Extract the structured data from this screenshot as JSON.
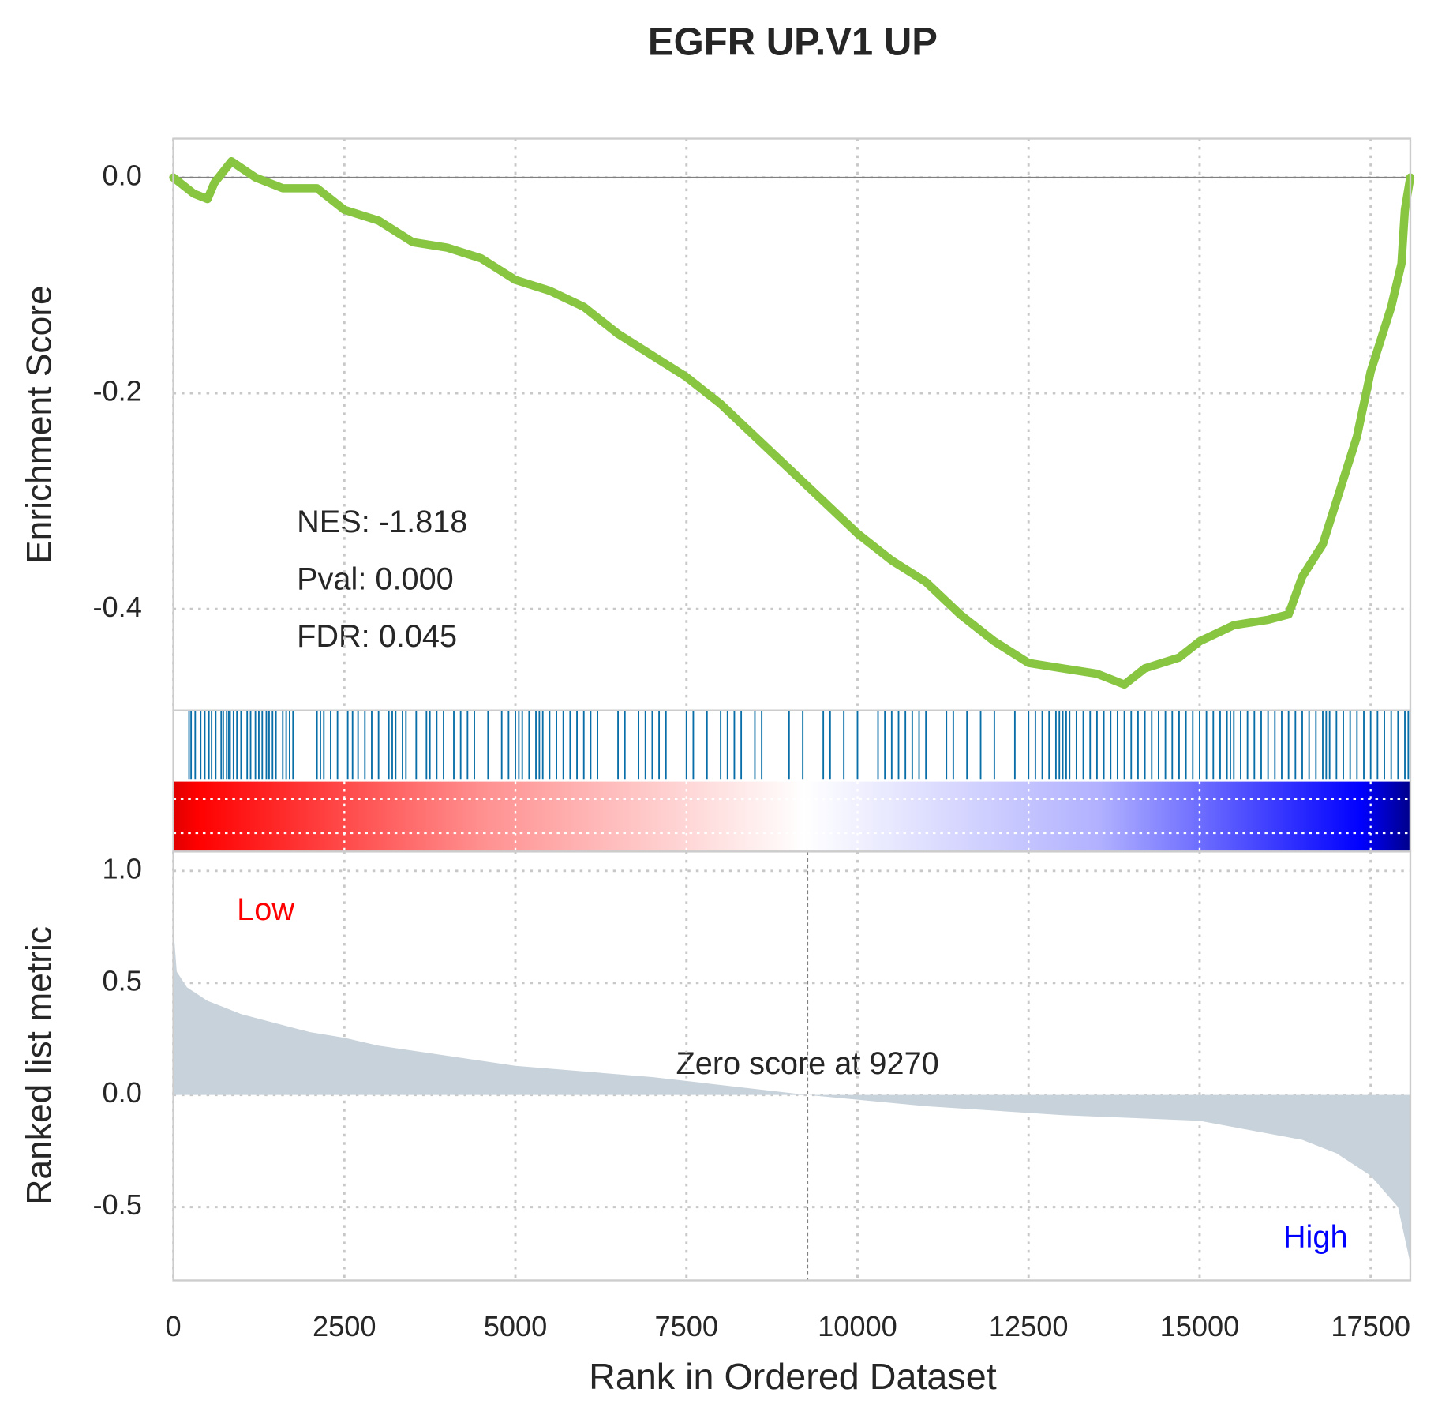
{
  "chart_data": [
    {
      "type": "line",
      "title": "EGFR UP.V1 UP",
      "ylabel": "Enrichment Score",
      "color": "#88c540",
      "x": [
        0,
        300,
        500,
        600,
        850,
        1200,
        1600,
        2100,
        2500,
        3000,
        3500,
        4000,
        4500,
        5000,
        5500,
        6000,
        6500,
        7000,
        7500,
        8000,
        8500,
        9000,
        9500,
        10000,
        10500,
        11000,
        11500,
        12000,
        12500,
        13000,
        13500,
        13900,
        14200,
        14700,
        15000,
        15500,
        16000,
        16300,
        16500,
        16800,
        17000,
        17300,
        17500,
        17800,
        17950,
        18000,
        18079
      ],
      "values": [
        0,
        -0.015,
        -0.02,
        -0.005,
        0.015,
        0,
        -0.01,
        -0.01,
        -0.03,
        -0.04,
        -0.06,
        -0.065,
        -0.075,
        -0.095,
        -0.105,
        -0.12,
        -0.145,
        -0.165,
        -0.185,
        -0.21,
        -0.24,
        -0.27,
        -0.3,
        -0.33,
        -0.355,
        -0.375,
        -0.405,
        -0.43,
        -0.45,
        -0.455,
        -0.46,
        -0.47,
        -0.455,
        -0.445,
        -0.43,
        -0.415,
        -0.41,
        -0.405,
        -0.37,
        -0.34,
        -0.3,
        -0.24,
        -0.18,
        -0.12,
        -0.08,
        -0.03,
        0
      ],
      "xlim": [
        0,
        18080
      ],
      "ylim": [
        -0.494,
        0.036
      ],
      "yticks": [
        {
          "value": 0,
          "label": "0.0"
        },
        -0.2,
        -0.4
      ],
      "annotations": [
        "NES: -1.818",
        "Pval: 0.000",
        "FDR: 0.045"
      ],
      "grid": true
    },
    {
      "type": "rug",
      "color": "#0a6fa8",
      "xlim": [
        0,
        18080
      ],
      "x": [
        230,
        260,
        320,
        400,
        460,
        520,
        560,
        620,
        700,
        730,
        780,
        810,
        830,
        880,
        930,
        990,
        1080,
        1130,
        1200,
        1250,
        1300,
        1360,
        1400,
        1450,
        1500,
        1600,
        1650,
        1700,
        1750,
        2100,
        2150,
        2200,
        2300,
        2400,
        2550,
        2620,
        2700,
        2800,
        2900,
        3000,
        3150,
        3200,
        3250,
        3350,
        3400,
        3550,
        3700,
        3750,
        3850,
        3950,
        4100,
        4200,
        4300,
        4400,
        4600,
        4800,
        4900,
        5000,
        5050,
        5100,
        5200,
        5300,
        5350,
        5400,
        5500,
        5600,
        5700,
        5800,
        5900,
        6000,
        6100,
        6200,
        6500,
        6600,
        6800,
        6900,
        7000,
        7100,
        7200,
        7500,
        7600,
        7800,
        8000,
        8100,
        8200,
        8300,
        8500,
        8600,
        9000,
        9200,
        9500,
        9600,
        9800,
        10000,
        10300,
        10400,
        10500,
        10600,
        10700,
        10800,
        10900,
        11000,
        11300,
        11400,
        11600,
        11800,
        12000,
        12300,
        12500,
        12600,
        12700,
        12800,
        12900,
        12950,
        13000,
        13050,
        13100,
        13200,
        13300,
        13400,
        13500,
        13600,
        13700,
        13800,
        13900,
        14000,
        14100,
        14200,
        14300,
        14400,
        14500,
        14600,
        14700,
        14800,
        14900,
        15000,
        15100,
        15200,
        15300,
        15400,
        15450,
        15500,
        15600,
        15700,
        15800,
        15900,
        16000,
        16100,
        16200,
        16300,
        16400,
        16500,
        16600,
        16700,
        16800,
        16850,
        16900,
        17000,
        17100,
        17200,
        17300,
        17400,
        17500,
        17600,
        17700,
        17800,
        17900,
        18000,
        18050
      ]
    },
    {
      "type": "area",
      "ylabel": "Ranked list metric",
      "xlabel": "Rank in Ordered Dataset",
      "color": "#c8d2da",
      "x": [
        0,
        50,
        200,
        500,
        1000,
        2000,
        2500,
        3000,
        5000,
        7000,
        9270,
        11000,
        13000,
        15000,
        16500,
        17000,
        17500,
        17900,
        18079
      ],
      "values": [
        0.75,
        0.55,
        0.48,
        0.42,
        0.36,
        0.28,
        0.255,
        0.22,
        0.13,
        0.08,
        0,
        -0.05,
        -0.09,
        -0.115,
        -0.2,
        -0.26,
        -0.36,
        -0.5,
        -0.75
      ],
      "xlim": [
        0,
        18080
      ],
      "ylim": [
        -0.827,
        1.086
      ],
      "xticks": [
        0,
        2500,
        5000,
        7500,
        10000,
        12500,
        15000,
        17500
      ],
      "yticks": [
        {
          "value": 1,
          "label": "1.0"
        },
        0.5,
        {
          "value": 0,
          "label": "0.0"
        },
        -0.5
      ],
      "zero_score": 9270,
      "zero_label": "Zero score at 9270",
      "low_label": "Low",
      "high_label": "High",
      "grid": true
    }
  ]
}
